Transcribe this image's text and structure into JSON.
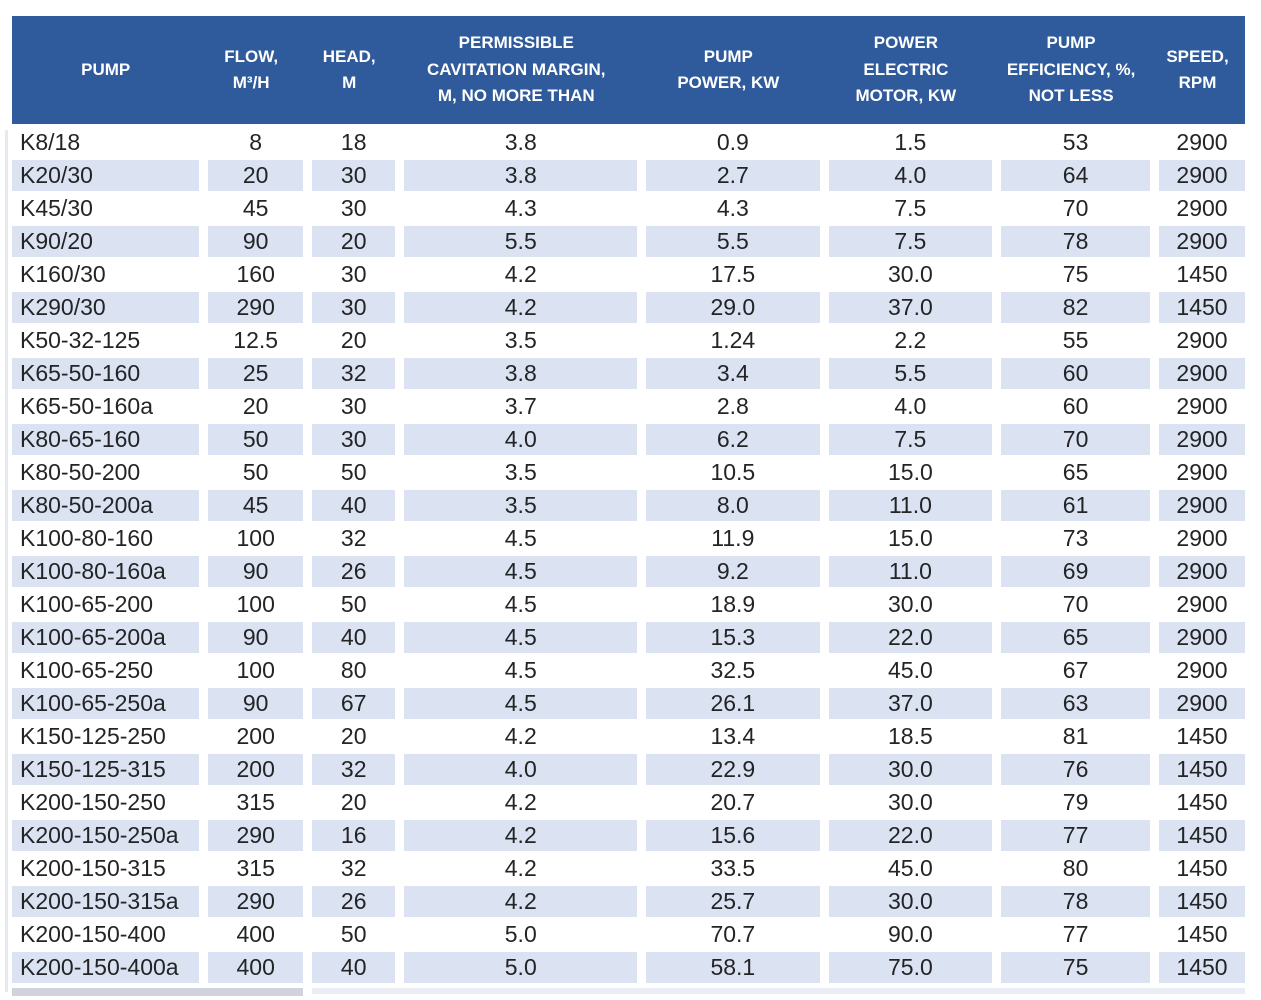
{
  "colors": {
    "header_bg": "#2f5b9c",
    "header_text": "#ffffff",
    "stripe_bg": "#dbe2f2",
    "row_bg": "#ffffff",
    "body_text": "#222426"
  },
  "chart_data": {
    "type": "table",
    "title": "Pump specifications table",
    "columns": [
      {
        "id": "pump",
        "label": "PUMP",
        "align": "left"
      },
      {
        "id": "flow",
        "label": "FLOW,\nM³/H",
        "align": "center"
      },
      {
        "id": "head",
        "label": "HEAD,\nM",
        "align": "center"
      },
      {
        "id": "cavitation",
        "label": "PERMISSIBLE\nCAVITATION MARGIN,\nM, NO MORE THAN",
        "align": "center"
      },
      {
        "id": "pump_power",
        "label": "PUMP\nPOWER, KW",
        "align": "center"
      },
      {
        "id": "motor_power",
        "label": "POWER\nELECTRIC\nMOTOR, KW",
        "align": "center"
      },
      {
        "id": "efficiency",
        "label": "PUMP\nEFFICIENCY, %,\nNOT LESS",
        "align": "center"
      },
      {
        "id": "speed",
        "label": "SPEED,\nRPM",
        "align": "center"
      }
    ],
    "rows": [
      [
        "K8/18",
        "8",
        "18",
        "3.8",
        "0.9",
        "1.5",
        "53",
        "2900"
      ],
      [
        "K20/30",
        "20",
        "30",
        "3.8",
        "2.7",
        "4.0",
        "64",
        "2900"
      ],
      [
        "K45/30",
        "45",
        "30",
        "4.3",
        "4.3",
        "7.5",
        "70",
        "2900"
      ],
      [
        "K90/20",
        "90",
        "20",
        "5.5",
        "5.5",
        "7.5",
        "78",
        "2900"
      ],
      [
        "K160/30",
        "160",
        "30",
        "4.2",
        "17.5",
        "30.0",
        "75",
        "1450"
      ],
      [
        "K290/30",
        "290",
        "30",
        "4.2",
        "29.0",
        "37.0",
        "82",
        "1450"
      ],
      [
        "K50-32-125",
        "12.5",
        "20",
        "3.5",
        "1.24",
        "2.2",
        "55",
        "2900"
      ],
      [
        "K65-50-160",
        "25",
        "32",
        "3.8",
        "3.4",
        "5.5",
        "60",
        "2900"
      ],
      [
        "K65-50-160a",
        "20",
        "30",
        "3.7",
        "2.8",
        "4.0",
        "60",
        "2900"
      ],
      [
        "K80-65-160",
        "50",
        "30",
        "4.0",
        "6.2",
        "7.5",
        "70",
        "2900"
      ],
      [
        "K80-50-200",
        "50",
        "50",
        "3.5",
        "10.5",
        "15.0",
        "65",
        "2900"
      ],
      [
        "K80-50-200a",
        "45",
        "40",
        "3.5",
        "8.0",
        "11.0",
        "61",
        "2900"
      ],
      [
        "K100-80-160",
        "100",
        "32",
        "4.5",
        "11.9",
        "15.0",
        "73",
        "2900"
      ],
      [
        "K100-80-160a",
        "90",
        "26",
        "4.5",
        "9.2",
        "11.0",
        "69",
        "2900"
      ],
      [
        "K100-65-200",
        "100",
        "50",
        "4.5",
        "18.9",
        "30.0",
        "70",
        "2900"
      ],
      [
        "K100-65-200a",
        "90",
        "40",
        "4.5",
        "15.3",
        "22.0",
        "65",
        "2900"
      ],
      [
        "K100-65-250",
        "100",
        "80",
        "4.5",
        "32.5",
        "45.0",
        "67",
        "2900"
      ],
      [
        "K100-65-250a",
        "90",
        "67",
        "4.5",
        "26.1",
        "37.0",
        "63",
        "2900"
      ],
      [
        "K150-125-250",
        "200",
        "20",
        "4.2",
        "13.4",
        "18.5",
        "81",
        "1450"
      ],
      [
        "K150-125-315",
        "200",
        "32",
        "4.0",
        "22.9",
        "30.0",
        "76",
        "1450"
      ],
      [
        "K200-150-250",
        "315",
        "20",
        "4.2",
        "20.7",
        "30.0",
        "79",
        "1450"
      ],
      [
        "K200-150-250a",
        "290",
        "16",
        "4.2",
        "15.6",
        "22.0",
        "77",
        "1450"
      ],
      [
        "K200-150-315",
        "315",
        "32",
        "4.2",
        "33.5",
        "45.0",
        "80",
        "1450"
      ],
      [
        "K200-150-315a",
        "290",
        "26",
        "4.2",
        "25.7",
        "30.0",
        "78",
        "1450"
      ],
      [
        "K200-150-400",
        "400",
        "50",
        "5.0",
        "70.7",
        "90.0",
        "77",
        "1450"
      ],
      [
        "K200-150-400a",
        "400",
        "40",
        "5.0",
        "58.1",
        "75.0",
        "75",
        "1450"
      ]
    ],
    "layout": {
      "striped_rows": "even rows light blue",
      "header_style": "dark blue background, white bold uppercase text",
      "column_width_percents": [
        15.2,
        8.4,
        7.5,
        19.6,
        14.8,
        14.0,
        12.8,
        7.7
      ]
    }
  }
}
